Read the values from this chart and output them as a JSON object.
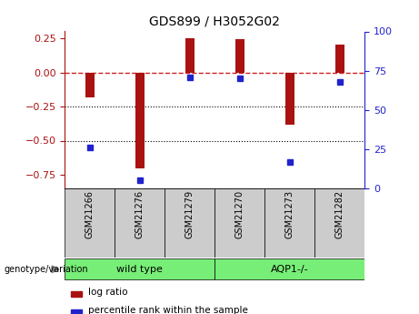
{
  "title": "GDS899 / H3052G02",
  "samples": [
    "GSM21266",
    "GSM21276",
    "GSM21279",
    "GSM21270",
    "GSM21273",
    "GSM21282"
  ],
  "log_ratio": [
    -0.18,
    -0.7,
    0.25,
    0.245,
    -0.38,
    0.2
  ],
  "percentile_rank": [
    26,
    5,
    71,
    70,
    17,
    68
  ],
  "bar_color": "#AA1111",
  "dot_color": "#2222CC",
  "zero_line_color": "#CC2222",
  "ylim_left": [
    -0.85,
    0.3
  ],
  "ylim_right": [
    0,
    100
  ],
  "yticks_left": [
    -0.75,
    -0.5,
    -0.25,
    0,
    0.25
  ],
  "yticks_right": [
    0,
    25,
    50,
    75,
    100
  ],
  "genotype_label": "genotype/variation",
  "group1_label": "wild type",
  "group2_label": "AQP1-/-",
  "legend_bar_label": "log ratio",
  "legend_dot_label": "percentile rank within the sample",
  "tick_box_color": "#CCCCCC",
  "green_color": "#77EE77",
  "bar_width": 0.18
}
